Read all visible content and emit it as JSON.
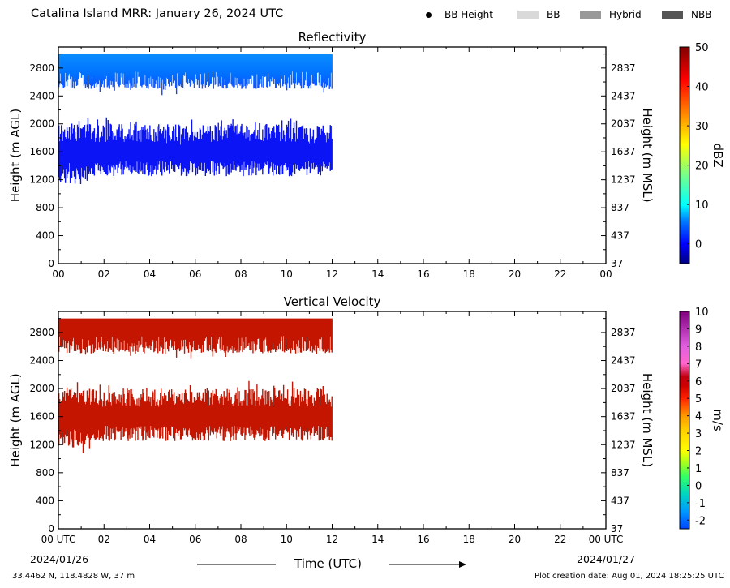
{
  "header": {
    "title": "Catalina Island MRR:  January 26, 2024 UTC",
    "legend": [
      {
        "label": "BB Height",
        "kind": "dot",
        "color": "#000000"
      },
      {
        "label": "BB",
        "kind": "swatch",
        "color": "#d9d9d9"
      },
      {
        "label": "Hybrid",
        "kind": "swatch",
        "color": "#999999"
      },
      {
        "label": "NBB",
        "kind": "swatch",
        "color": "#555555"
      }
    ]
  },
  "chart_data": [
    {
      "type": "heatmap",
      "title": "Reflectivity",
      "xlabel": "",
      "ylabel": "Height (m AGL)",
      "ylabel_right": "Height (m MSL)",
      "x_ticks": [
        "00",
        "02",
        "04",
        "06",
        "08",
        "10",
        "12",
        "14",
        "16",
        "18",
        "20",
        "22",
        "00"
      ],
      "x_range_hours": [
        0,
        24
      ],
      "y_range": [
        0,
        3100
      ],
      "y_ticks_left": [
        "0",
        "400",
        "800",
        "1200",
        "1600",
        "2000",
        "2400",
        "2800"
      ],
      "y_ticks_right": [
        "37",
        "437",
        "837",
        "1237",
        "1637",
        "2037",
        "2437",
        "2837"
      ],
      "colorbar": {
        "label": "dBZ",
        "range": [
          -5,
          50
        ],
        "ticks": [
          "0",
          "10",
          "20",
          "30",
          "40",
          "50"
        ]
      },
      "layers": [
        {
          "name": "upper cloud layer",
          "t_start": 0.0,
          "t_end": 12.0,
          "bottom_m": 2500,
          "top_m": 3000,
          "value": "≈0 to 5 dBZ"
        },
        {
          "name": "lower cloud layer",
          "t_start": 0.0,
          "t_end": 12.0,
          "bottom_m": 1250,
          "top_m": 2000,
          "value": "≈0 dBZ"
        }
      ]
    },
    {
      "type": "heatmap",
      "title": "Vertical Velocity",
      "xlabel": "Time (UTC)",
      "ylabel": "Height (m AGL)",
      "ylabel_right": "Height (m MSL)",
      "x_ticks": [
        "00 UTC",
        "02",
        "04",
        "06",
        "08",
        "10",
        "12",
        "14",
        "16",
        "18",
        "20",
        "22",
        "00 UTC"
      ],
      "x_range_hours": [
        0,
        24
      ],
      "y_range": [
        0,
        3100
      ],
      "y_ticks_left": [
        "0",
        "400",
        "800",
        "1200",
        "1600",
        "2000",
        "2400",
        "2800"
      ],
      "y_ticks_right": [
        "37",
        "437",
        "837",
        "1237",
        "1637",
        "2037",
        "2437",
        "2837"
      ],
      "colorbar": {
        "label": "m/s",
        "range": [
          -2.5,
          10
        ],
        "ticks": [
          "-2",
          "-1",
          "0",
          "1",
          "2",
          "3",
          "4",
          "5",
          "6",
          "7",
          "8",
          "9",
          "10"
        ]
      },
      "layers": [
        {
          "name": "upper cloud layer",
          "t_start": 0.0,
          "t_end": 12.0,
          "bottom_m": 2500,
          "top_m": 3000,
          "value": "≈6 m/s"
        },
        {
          "name": "lower cloud layer",
          "t_start": 0.0,
          "t_end": 12.0,
          "bottom_m": 1250,
          "top_m": 2000,
          "value": "≈6 m/s"
        }
      ]
    }
  ],
  "footer": {
    "date_start": "2024/01/26",
    "date_end": "2024/01/27",
    "time_label": "Time (UTC)",
    "location": "33.4462 N, 118.4828 W, 37 m",
    "created": "Plot creation date: Aug 01, 2024 18:25:25 UTC"
  }
}
